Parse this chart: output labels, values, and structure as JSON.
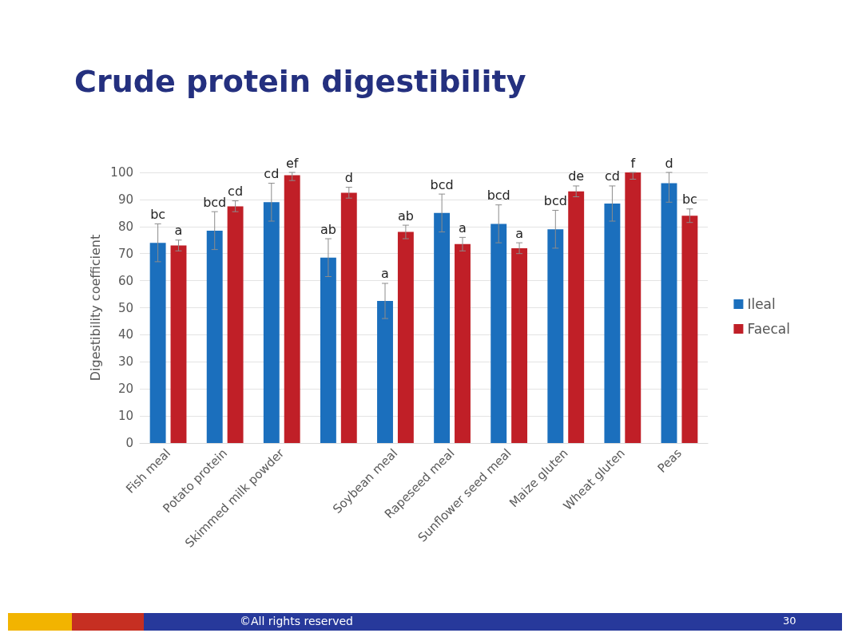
{
  "chart_data": {
    "type": "bar",
    "title": "Crude protein digestibility",
    "ylabel": "Digestibility coefficient",
    "categories": [
      "Fish meal",
      "Potato protein",
      "Skimmed milk powder",
      null,
      "Soybean meal",
      "Rapeseed meal",
      "Sunflower seed meal",
      "Maize gluten",
      "Wheat gluten",
      "Peas"
    ],
    "series": [
      {
        "name": "Ileal",
        "color": "#1b6fbd",
        "values": [
          74,
          78.5,
          89,
          68.5,
          52.5,
          85,
          81,
          79,
          88.5,
          96
        ],
        "errors": [
          7,
          7,
          7,
          7,
          6.5,
          7,
          7,
          7,
          6.5,
          [
            89,
            100
          ]
        ],
        "value_labels": [
          "bc",
          "bcd",
          "cd",
          "ab",
          "a",
          "bcd",
          "bcd",
          "bcd",
          "cd",
          "d"
        ]
      },
      {
        "name": "Faecal",
        "color": "#c01f27",
        "values": [
          73,
          87.5,
          99,
          92.5,
          78,
          73.5,
          72,
          93,
          100,
          84
        ],
        "errors": [
          2,
          2,
          [
            97,
            100
          ],
          2,
          2.5,
          2.5,
          2,
          2,
          [
            97.5,
            100
          ],
          2.5
        ],
        "value_labels": [
          "a",
          "cd",
          "ef",
          "d",
          "ab",
          "a",
          "a",
          "de",
          "f",
          "bc"
        ]
      }
    ],
    "ylim": [
      0,
      100
    ],
    "yticks": [
      0,
      10,
      20,
      30,
      40,
      50,
      60,
      70,
      80,
      90,
      100
    ],
    "grid": "y",
    "legend": "right",
    "annotations": [
      "©All rights reserved",
      "30"
    ]
  }
}
